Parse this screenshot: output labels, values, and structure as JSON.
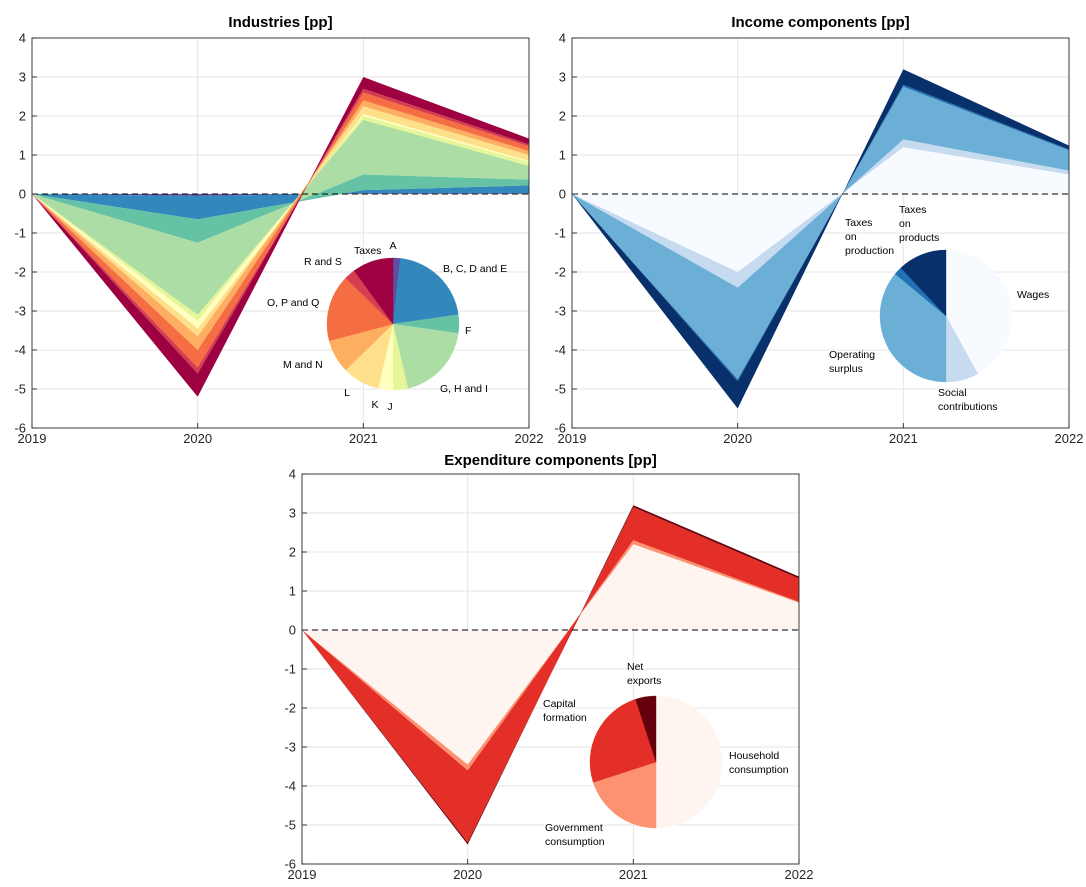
{
  "chart_data": [
    {
      "type": "area",
      "title": "Industries [pp]",
      "x": [
        "2019",
        "2020",
        "2021",
        "2022"
      ],
      "ylim": [
        -6,
        4
      ],
      "yticks": [
        "4",
        "3",
        "2",
        "1",
        "0",
        "-1",
        "-2",
        "-3",
        "-4",
        "-5",
        "-6"
      ],
      "grid": true,
      "zero_line": "dashed",
      "series": [
        {
          "values": [
            0,
            -0.05,
            0.02,
            0.02
          ],
          "color": "#5e4fa2"
        },
        {
          "values": [
            0,
            -0.6,
            0.08,
            0.2
          ],
          "color": "#3288bd"
        },
        {
          "values": [
            0,
            -0.6,
            0.4,
            0.15
          ],
          "color": "#66c2a5"
        },
        {
          "values": [
            0,
            -1.85,
            1.4,
            0.35
          ],
          "color": "#abdda4"
        },
        {
          "values": [
            0,
            -0.15,
            0.1,
            0.1
          ],
          "color": "#e6f598"
        },
        {
          "values": [
            0,
            -0.2,
            0.05,
            0.03
          ],
          "color": "#ffffbf"
        },
        {
          "values": [
            0,
            -0.2,
            0.2,
            0.15
          ],
          "color": "#fee08b"
        },
        {
          "values": [
            0,
            -0.35,
            0.15,
            0.1
          ],
          "color": "#fdae61"
        },
        {
          "values": [
            0,
            -0.45,
            0.2,
            0.12
          ],
          "color": "#f46d43"
        },
        {
          "values": [
            0,
            -0.15,
            0.1,
            0.05
          ],
          "color": "#d53e4f"
        },
        {
          "values": [
            0,
            -0.6,
            0.3,
            0.15
          ],
          "color": "#9e0142"
        }
      ],
      "pie": {
        "slices": [
          {
            "label": "A",
            "value": 2,
            "color": "#5e4fa2"
          },
          {
            "label": "B, C, D and E",
            "value": 23,
            "color": "#3288bd"
          },
          {
            "label": "F",
            "value": 5,
            "color": "#66c2a5"
          },
          {
            "label": "G, H and I",
            "value": 21,
            "color": "#abdda4"
          },
          {
            "label": "J",
            "value": 4,
            "color": "#e6f598"
          },
          {
            "label": "K",
            "value": 4,
            "color": "#ffffbf"
          },
          {
            "label": "L",
            "value": 10,
            "color": "#fee08b"
          },
          {
            "label": "M and N",
            "value": 9,
            "color": "#fdae61"
          },
          {
            "label": "O, P and Q",
            "value": 18,
            "color": "#f46d43"
          },
          {
            "label": "R and S",
            "value": 3,
            "color": "#d53e4f"
          },
          {
            "label": "Taxes",
            "value": 11,
            "color": "#9e0142"
          }
        ]
      }
    },
    {
      "type": "area",
      "title": "Income components [pp]",
      "x": [
        "2019",
        "2020",
        "2021",
        "2022"
      ],
      "ylim": [
        -6,
        4
      ],
      "yticks": [
        "4",
        "3",
        "2",
        "1",
        "0",
        "-1",
        "-2",
        "-3",
        "-4",
        "-5",
        "-6"
      ],
      "grid": true,
      "zero_line": "dashed",
      "series": [
        {
          "values": [
            0,
            -2.0,
            1.2,
            0.5
          ],
          "color": "#f7fbff"
        },
        {
          "values": [
            0,
            -0.4,
            0.2,
            0.1
          ],
          "color": "#c6dbef"
        },
        {
          "values": [
            0,
            -2.35,
            1.35,
            0.52
          ],
          "color": "#6baed6"
        },
        {
          "values": [
            0,
            -0.05,
            0.05,
            0.02
          ],
          "color": "#2171b5"
        },
        {
          "values": [
            0,
            -0.7,
            0.4,
            0.1
          ],
          "color": "#08306b"
        }
      ],
      "pie": {
        "slices": [
          {
            "label": "Wages",
            "value": 42,
            "color": "#f7fbff"
          },
          {
            "label": "Social contributions",
            "value": 8,
            "color": "#c6dbef"
          },
          {
            "label": "Operating surplus",
            "value": 36,
            "color": "#6baed6"
          },
          {
            "label": "Taxes on production",
            "value": 2,
            "color": "#2171b5"
          },
          {
            "label": "Taxes on products",
            "value": 12,
            "color": "#08306b"
          }
        ]
      }
    },
    {
      "type": "area",
      "title": "Expenditure components [pp]",
      "x": [
        "2019",
        "2020",
        "2021",
        "2022"
      ],
      "ylim": [
        -6,
        4
      ],
      "yticks": [
        "4",
        "3",
        "2",
        "1",
        "0",
        "-1",
        "-2",
        "-3",
        "-4",
        "-5",
        "-6"
      ],
      "grid": true,
      "zero_line": "dashed",
      "series": [
        {
          "values": [
            0,
            -3.45,
            2.2,
            0.7
          ],
          "color": "#fff5f0"
        },
        {
          "values": [
            0,
            -0.15,
            0.1,
            0.02
          ],
          "color": "#fc9272"
        },
        {
          "values": [
            0,
            -1.85,
            0.85,
            0.6
          ],
          "color": "#e32f27"
        },
        {
          "values": [
            0,
            -0.05,
            0.05,
            0.05
          ],
          "color": "#67000d"
        }
      ],
      "pie": {
        "slices": [
          {
            "label": "Household consumption",
            "value": 50,
            "color": "#fff5f0"
          },
          {
            "label": "Government consumption",
            "value": 20,
            "color": "#fc9272"
          },
          {
            "label": "Capital formation",
            "value": 25,
            "color": "#e32f27"
          },
          {
            "label": "Net exports",
            "value": 5,
            "color": "#67000d"
          }
        ]
      }
    }
  ]
}
